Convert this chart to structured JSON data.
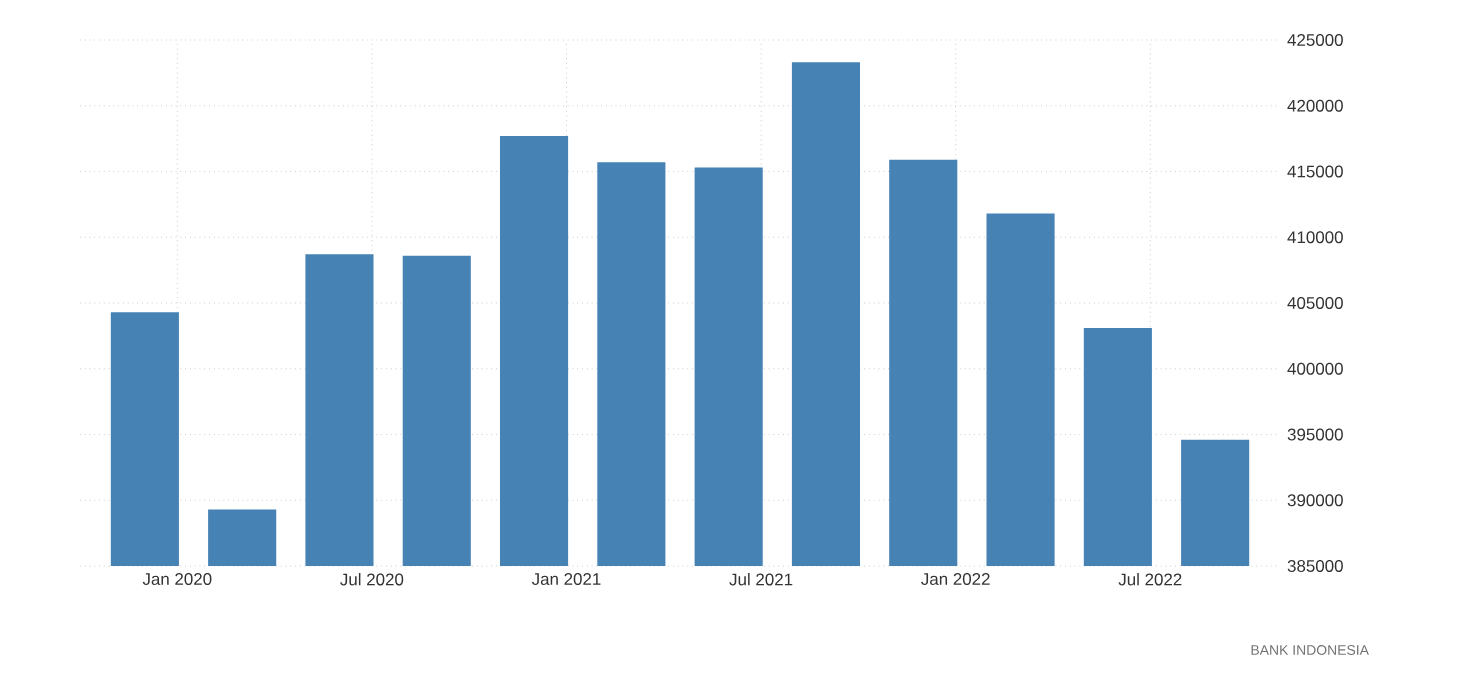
{
  "chart_data": {
    "type": "bar",
    "x": [
      "2019-12",
      "2020-03",
      "2020-06",
      "2020-09",
      "2020-12",
      "2021-03",
      "2021-06",
      "2021-09",
      "2021-12",
      "2022-03",
      "2022-06",
      "2022-09"
    ],
    "values": [
      404300,
      389300,
      408700,
      408600,
      417700,
      415700,
      415300,
      423300,
      415900,
      411800,
      403100,
      394600
    ],
    "color": "#4682b4",
    "ylim": [
      385000,
      425000
    ],
    "yticks": [
      385000,
      390000,
      395000,
      400000,
      405000,
      410000,
      415000,
      420000,
      425000
    ],
    "xlim": [
      "2019-10",
      "2022-11"
    ],
    "xticks": [
      {
        "value": "2020-01",
        "label": "Jan 2020"
      },
      {
        "value": "2020-07",
        "label": "Jul 2020"
      },
      {
        "value": "2021-01",
        "label": "Jan 2021"
      },
      {
        "value": "2021-07",
        "label": "Jul 2021"
      },
      {
        "value": "2022-01",
        "label": "Jan 2022"
      },
      {
        "value": "2022-07",
        "label": "Jul 2022"
      }
    ],
    "grid": true,
    "annotations": [
      "BANK INDONESIA"
    ]
  }
}
